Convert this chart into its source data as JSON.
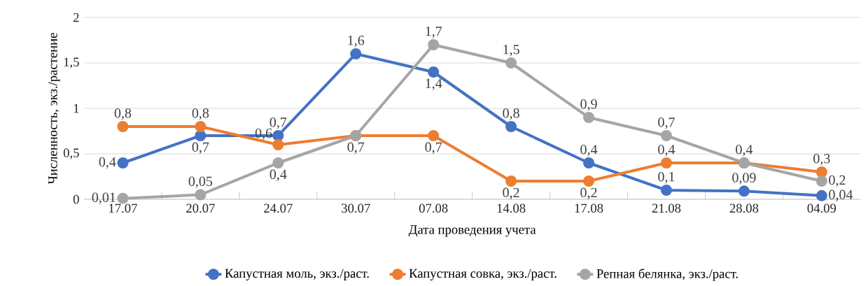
{
  "chart_data": {
    "type": "line",
    "xlabel": "Дата проведения учета",
    "ylabel": "Численность, экз./растение",
    "categories": [
      "17.07",
      "20.07",
      "24.07",
      "30.07",
      "07.08",
      "14.08",
      "17.08",
      "21.08",
      "28.08",
      "04.09"
    ],
    "ylim": [
      0,
      2
    ],
    "yticks": [
      0,
      {
        "value": 0.5,
        "label": "0,5"
      },
      1,
      {
        "value": 1.5,
        "label": "1,5"
      },
      2
    ],
    "grid": "y",
    "legend": "bottom",
    "marker": "circle",
    "line_style": "solid",
    "series": [
      {
        "name": "Капустная моль, экз./раст.",
        "color": "#4472c4",
        "values": [
          0.4,
          0.7,
          0.7,
          1.6,
          1.4,
          0.8,
          0.4,
          0.1,
          0.09,
          0.04
        ],
        "value_labels": [
          "0,4",
          "0,7",
          "0,7",
          "1,6",
          "1,4",
          "0,8",
          "0,4",
          "0,1",
          "0,09",
          "0,04"
        ]
      },
      {
        "name": "Капустная совка, экз./раст.",
        "color": "#ed7d31",
        "values": [
          0.8,
          0.8,
          0.6,
          0.7,
          0.7,
          0.2,
          0.2,
          0.4,
          0.4,
          0.3
        ],
        "value_labels": [
          "0,8",
          "0,8",
          "0,6",
          null,
          "0,7",
          "0,2",
          "0,2",
          "0,4",
          null,
          "0,3"
        ]
      },
      {
        "name": "Репная белянка, экз./раст.",
        "color": "#a5a5a5",
        "values": [
          0.01,
          0.05,
          0.4,
          0.7,
          1.7,
          1.5,
          0.9,
          0.7,
          0.4,
          0.2
        ],
        "value_labels": [
          "0,01",
          "0,05",
          "0,4",
          "0,7",
          "1,7",
          "1,5",
          "0,9",
          "0,7",
          "0,4",
          "0,2"
        ]
      }
    ]
  }
}
